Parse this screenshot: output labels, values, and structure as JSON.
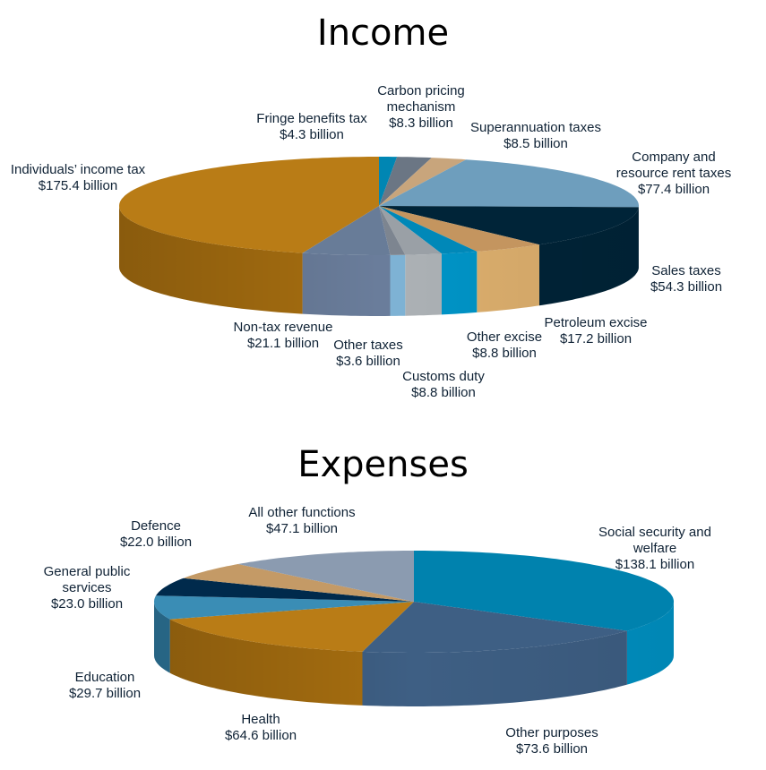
{
  "chart_data": [
    {
      "type": "pie",
      "title": "Income",
      "unit": "$ billion",
      "slices": [
        {
          "label": "Fringe benefits tax",
          "value_label": "$4.3 billion",
          "value": 4.3,
          "color": "#0086b3",
          "side": "#0079a2"
        },
        {
          "label": "Carbon pricing mechanism",
          "value_label": "$8.3 billion",
          "value": 8.3,
          "color": "#6b7684",
          "side": "#606b78"
        },
        {
          "label": "Superannuation taxes",
          "value_label": "$8.5 billion",
          "value": 8.5,
          "color": "#c8a57c",
          "side": "#b8966e"
        },
        {
          "label": "Company and resource rent taxes",
          "value_label": "$77.4 billion",
          "value": 77.4,
          "color": "#6e9ebd",
          "side": "#5d8cab"
        },
        {
          "label": "Sales taxes",
          "value_label": "$54.3 billion",
          "value": 54.3,
          "color": "#002438",
          "side": "#002438"
        },
        {
          "label": "Petroleum excise",
          "value_label": "$17.2 billion",
          "value": 17.2,
          "color": "#c4955f",
          "side": "#deb06e"
        },
        {
          "label": "Other excise",
          "value_label": "$8.8 billion",
          "value": 8.8,
          "color": "#0088b8",
          "side": "#0095c8"
        },
        {
          "label": "Customs duty",
          "value_label": "$8.8 billion",
          "value": 8.8,
          "color": "#9aa0a6",
          "side": "#adb2b6"
        },
        {
          "label": "Other taxes",
          "value_label": "$3.6 billion",
          "value": 3.6,
          "color": "#7d8590",
          "side": "#7fb3d5"
        },
        {
          "label": "Non-tax revenue",
          "value_label": "$21.1 billion",
          "value": 21.1,
          "color": "#687c98",
          "side": "#6a7d9b"
        },
        {
          "label": "Individuals’ income tax",
          "value_label": "$175.4 billion",
          "value": 175.4,
          "color": "#b97c16",
          "side": "#a86f10"
        }
      ]
    },
    {
      "type": "pie",
      "title": "Expenses",
      "unit": "$ billion",
      "slices": [
        {
          "label": "Social security and welfare",
          "value_label": "$138.1 billion",
          "value": 138.1,
          "color": "#0082ae",
          "side": "#0092c4"
        },
        {
          "label": "Other purposes",
          "value_label": "$73.6 billion",
          "value": 73.6,
          "color": "#3e5f84",
          "side": "#3e5f84"
        },
        {
          "label": "Health",
          "value_label": "$64.6 billion",
          "value": 64.6,
          "color": "#b97c16",
          "side": "#a86f10"
        },
        {
          "label": "Education",
          "value_label": "$29.7 billion",
          "value": 29.7,
          "color": "#3a8db5",
          "side": "#2f7aa0"
        },
        {
          "label": "General public services",
          "value_label": "$23.0 billion",
          "value": 23.0,
          "color": "#002a4c",
          "side": "#002a4c"
        },
        {
          "label": "Defence",
          "value_label": "$22.0 billion",
          "value": 22.0,
          "color": "#c49a66",
          "side": "#b08858"
        },
        {
          "label": "All other functions",
          "value_label": "$47.1 billion",
          "value": 47.1,
          "color": "#8b9bb0",
          "side": "#7d8ca0"
        }
      ]
    }
  ]
}
